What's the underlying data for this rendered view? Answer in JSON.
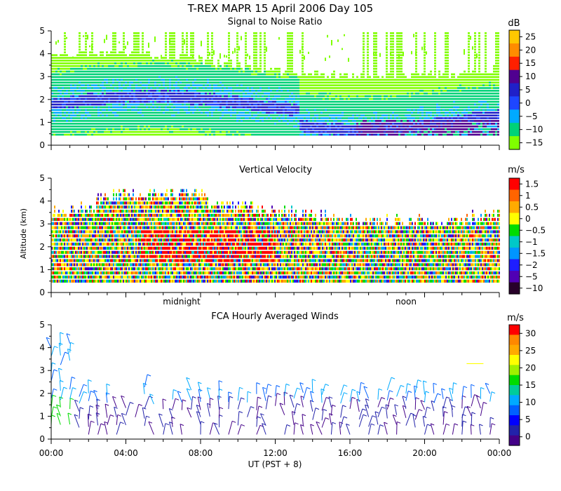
{
  "chart_data": [
    {
      "type": "heatmap",
      "suptitle": "T-REX  MAPR 15 April 2006 Day 105",
      "title": "Signal to Noise Ratio",
      "ylabel": "",
      "ylim": [
        0,
        5
      ],
      "y_ticks": [
        "0",
        "1",
        "2",
        "3",
        "4",
        "5"
      ],
      "colorbar": {
        "unit": "dB",
        "labels": [
          "25",
          "20",
          "15",
          "10",
          "5",
          "0",
          "−5",
          "−10",
          "−15"
        ],
        "colors": [
          "#ffc800",
          "#ff8c00",
          "#ff2000",
          "#500090",
          "#2020c8",
          "#1e46ff",
          "#00aaff",
          "#00d278",
          "#80ff00"
        ]
      }
    },
    {
      "type": "heatmap",
      "title": "Vertical Velocity",
      "ylabel": "Altitude (km)",
      "ylim": [
        0,
        5
      ],
      "y_ticks": [
        "0",
        "1",
        "2",
        "3",
        "4",
        "5"
      ],
      "annotations": [
        "midnight",
        "noon"
      ],
      "colorbar": {
        "unit": "m/s",
        "labels": [
          "1.5",
          "1",
          "0.5",
          "0",
          "−0.5",
          "−1",
          "−1.5",
          "−2",
          "−5",
          "−10"
        ],
        "colors": [
          "#ff0000",
          "#ff6400",
          "#ffaa00",
          "#ffff00",
          "#00dc00",
          "#00c8c8",
          "#0096ff",
          "#1e1eff",
          "#5000b4",
          "#28002a"
        ]
      }
    },
    {
      "type": "barbs",
      "title": "FCA Hourly Averaged Winds",
      "ylabel": "",
      "ylim": [
        0,
        5
      ],
      "y_ticks": [
        "0",
        "1",
        "2",
        "3",
        "4",
        "5"
      ],
      "x_ticks": [
        "00:00",
        "04:00",
        "08:00",
        "12:00",
        "16:00",
        "20:00",
        "00:00"
      ],
      "xlabel": "UT  (PST + 8)",
      "colorbar": {
        "unit": "m/s",
        "labels": [
          "30",
          "25",
          "20",
          "15",
          "10",
          "5",
          "0"
        ],
        "colors": [
          "#ff0000",
          "#ff8800",
          "#ffaa00",
          "#ffff00",
          "#a0f000",
          "#00dc00",
          "#00cc99",
          "#00aaff",
          "#0060ff",
          "#0000ff",
          "#2222aa",
          "#440088"
        ]
      }
    }
  ]
}
